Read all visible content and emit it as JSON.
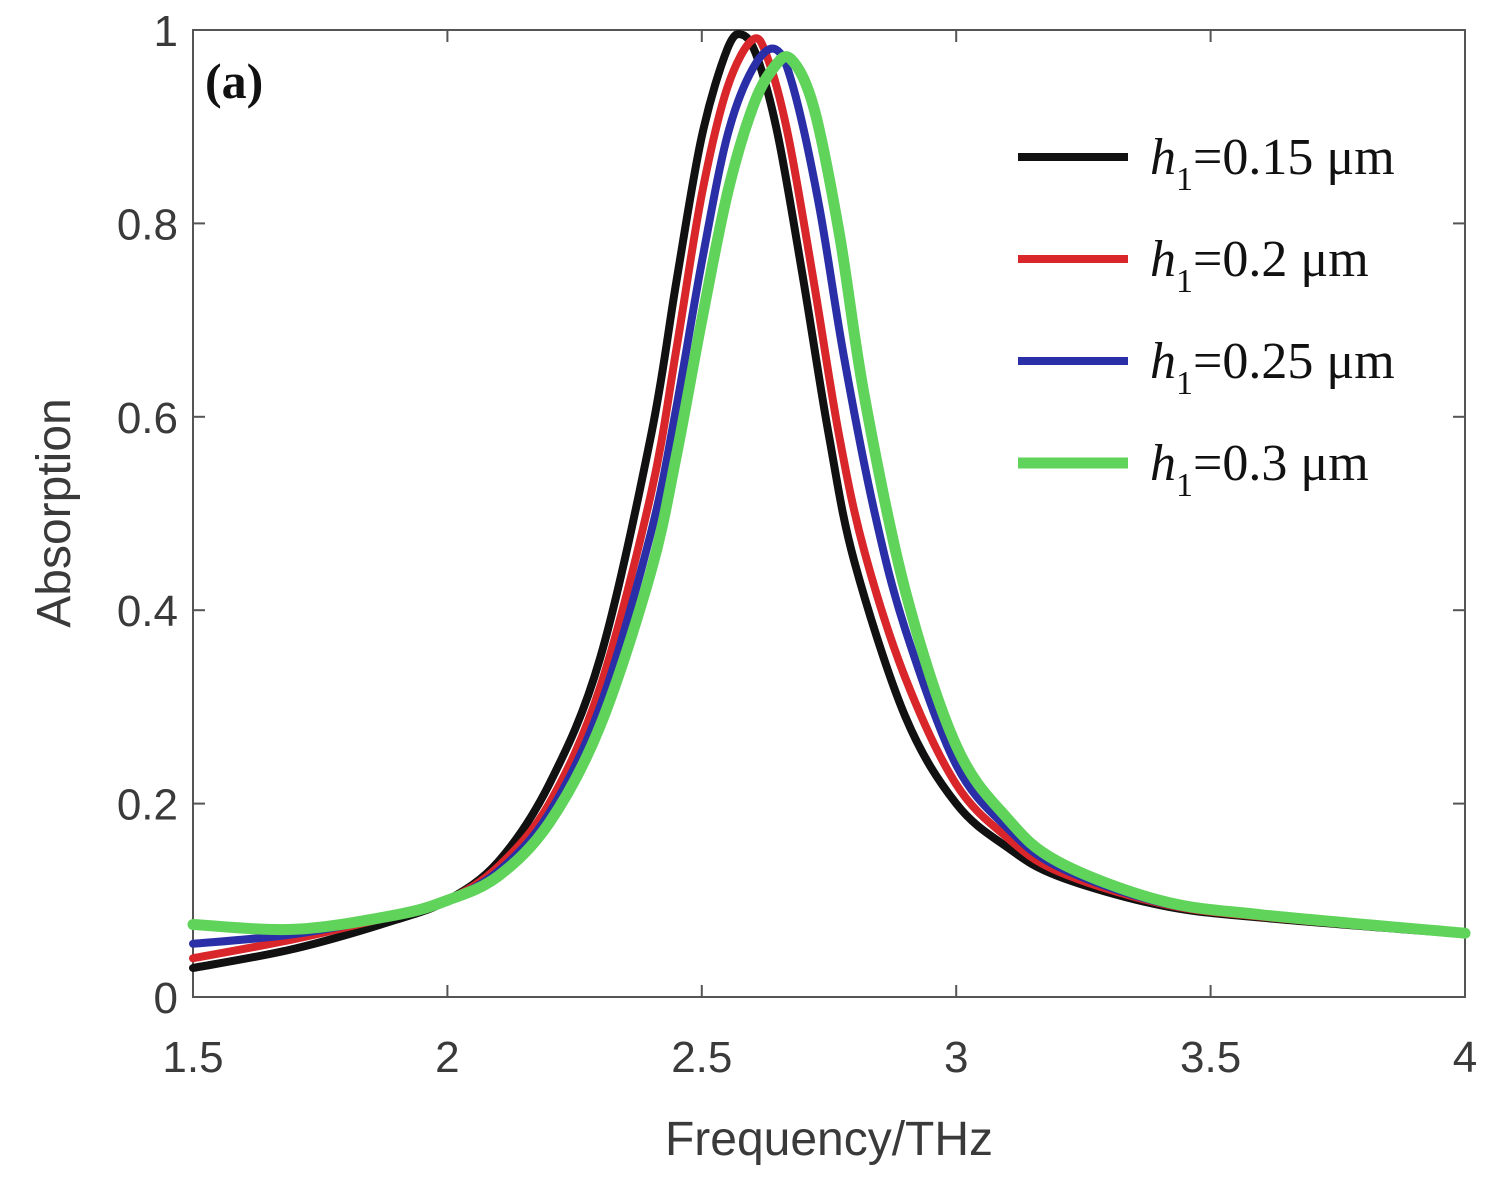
{
  "chart_data": {
    "type": "line",
    "panel_label": "(a)",
    "xlabel": "Frequency/THz",
    "ylabel": "Absorption",
    "xlim": [
      1.5,
      4
    ],
    "ylim": [
      0,
      1
    ],
    "x_ticks": [
      "1.5",
      "2",
      "2.5",
      "3",
      "3.5",
      "4"
    ],
    "y_ticks": [
      "0",
      "0.2",
      "0.4",
      "0.6",
      "0.8",
      "1"
    ],
    "legend_position": "top-right",
    "series": [
      {
        "name": "h1=0.15 μm",
        "legend": {
          "var": "h",
          "sub": "1",
          "rest": "=0.15 μm"
        },
        "color": "#111111",
        "x": [
          1.5,
          1.7,
          1.9,
          2.0,
          2.1,
          2.2,
          2.3,
          2.4,
          2.45,
          2.5,
          2.55,
          2.58,
          2.61,
          2.65,
          2.7,
          2.75,
          2.8,
          2.9,
          3.0,
          3.1,
          3.2,
          3.4,
          3.6,
          4.0
        ],
        "y": [
          0.03,
          0.05,
          0.08,
          0.1,
          0.14,
          0.22,
          0.35,
          0.58,
          0.74,
          0.89,
          0.98,
          0.995,
          0.97,
          0.89,
          0.74,
          0.58,
          0.45,
          0.29,
          0.2,
          0.155,
          0.125,
          0.095,
          0.082,
          0.065
        ]
      },
      {
        "name": "h1=0.2 μm",
        "legend": {
          "var": "h",
          "sub": "1",
          "rest": "=0.2 μm"
        },
        "color": "#d8262a",
        "x": [
          1.5,
          1.7,
          1.9,
          2.0,
          2.1,
          2.2,
          2.3,
          2.4,
          2.45,
          2.5,
          2.55,
          2.6,
          2.63,
          2.67,
          2.72,
          2.77,
          2.82,
          2.9,
          3.0,
          3.1,
          3.2,
          3.4,
          3.6,
          4.0
        ],
        "y": [
          0.04,
          0.06,
          0.085,
          0.1,
          0.135,
          0.2,
          0.32,
          0.52,
          0.67,
          0.83,
          0.94,
          0.99,
          0.97,
          0.89,
          0.74,
          0.58,
          0.46,
          0.33,
          0.22,
          0.165,
          0.13,
          0.097,
          0.083,
          0.065
        ]
      },
      {
        "name": "h1=0.25 μm",
        "legend": {
          "var": "h",
          "sub": "1",
          "rest": "=0.25 μm"
        },
        "color": "#2a2fa8",
        "x": [
          1.5,
          1.7,
          1.9,
          2.0,
          2.1,
          2.2,
          2.3,
          2.4,
          2.45,
          2.5,
          2.55,
          2.6,
          2.645,
          2.68,
          2.73,
          2.78,
          2.84,
          2.9,
          3.0,
          3.1,
          3.2,
          3.4,
          3.6,
          4.0
        ],
        "y": [
          0.055,
          0.065,
          0.085,
          0.1,
          0.13,
          0.19,
          0.3,
          0.48,
          0.61,
          0.76,
          0.89,
          0.96,
          0.98,
          0.94,
          0.82,
          0.66,
          0.5,
          0.38,
          0.24,
          0.175,
          0.135,
          0.098,
          0.084,
          0.065
        ]
      },
      {
        "name": "h1=0.3 μm",
        "legend": {
          "var": "h",
          "sub": "1",
          "rest": "=0.3 μm"
        },
        "color": "#5fd35a",
        "x": [
          1.5,
          1.7,
          1.9,
          2.0,
          2.1,
          2.2,
          2.3,
          2.4,
          2.45,
          2.5,
          2.55,
          2.6,
          2.64,
          2.675,
          2.72,
          2.77,
          2.82,
          2.9,
          3.0,
          3.1,
          3.2,
          3.4,
          3.6,
          4.0
        ],
        "y": [
          0.075,
          0.07,
          0.085,
          0.1,
          0.125,
          0.18,
          0.28,
          0.44,
          0.56,
          0.7,
          0.83,
          0.92,
          0.96,
          0.97,
          0.92,
          0.79,
          0.62,
          0.42,
          0.26,
          0.185,
          0.14,
          0.1,
          0.085,
          0.066
        ]
      }
    ]
  }
}
